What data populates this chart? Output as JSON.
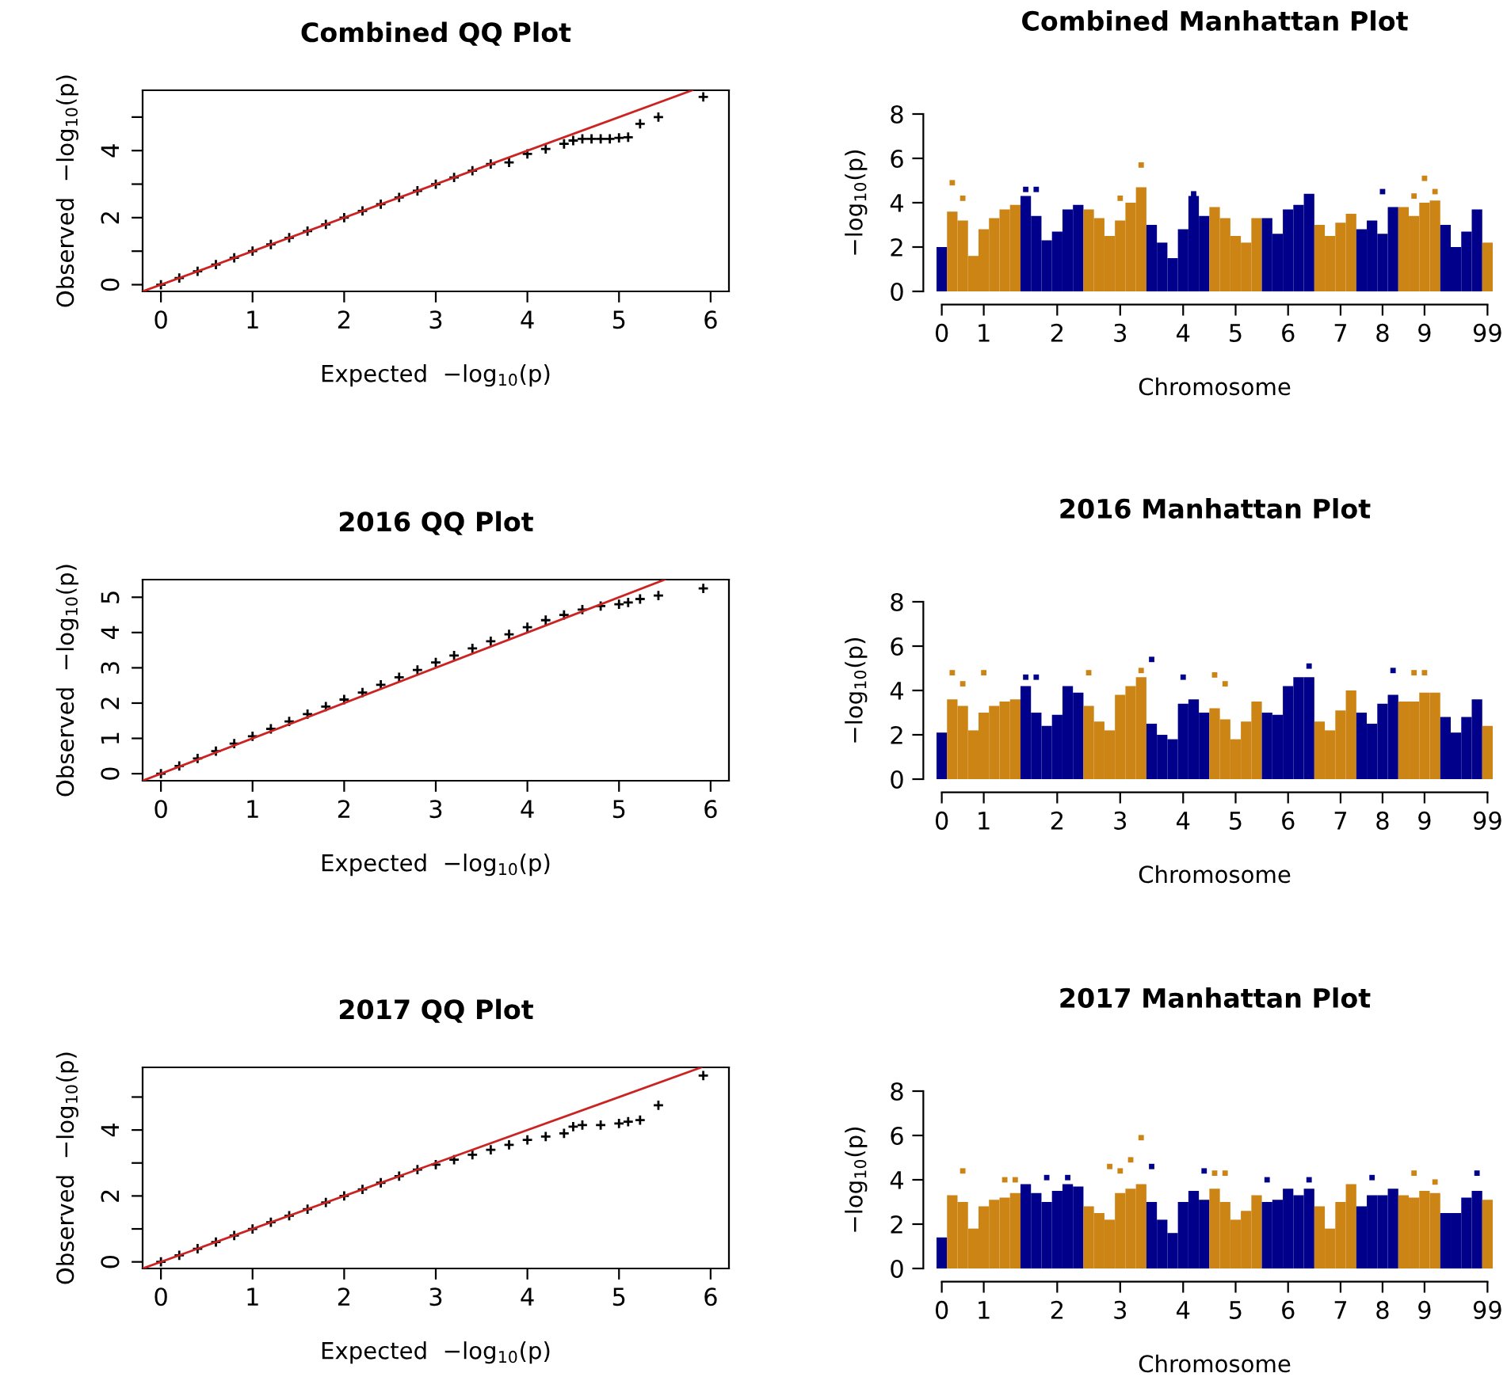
{
  "chart_data": [
    {
      "type": "scatter",
      "title": "Combined QQ Plot",
      "xlabel": "Expected  −log$_{10}$(p)",
      "ylabel": "Observed  −log$_{10}$(p)",
      "xlim": [
        -0.2,
        6.2
      ],
      "ylim": [
        -0.2,
        5.8
      ],
      "xticks": [
        0,
        1,
        2,
        3,
        4,
        5,
        6
      ],
      "yticks": [
        0,
        {
          "value": 1,
          "label": null
        },
        2,
        {
          "value": 3,
          "label": null
        },
        4,
        {
          "value": 5,
          "label": null
        }
      ],
      "series": [
        {
          "marker": "cross",
          "color": "#000000",
          "x": [
            0,
            0.2,
            0.4,
            0.6,
            0.8,
            1,
            1.2,
            1.4,
            1.6,
            1.8,
            2,
            2.2,
            2.4,
            2.6,
            2.8,
            3,
            3.2,
            3.4,
            3.6,
            3.8,
            4,
            4.2,
            4.4,
            4.5,
            4.6,
            4.7,
            4.8,
            4.9,
            5,
            5.1,
            5.23,
            5.43,
            5.92
          ],
          "values": [
            0,
            0.2,
            0.4,
            0.6,
            0.8,
            1,
            1.2,
            1.4,
            1.6,
            1.8,
            2,
            2.2,
            2.4,
            2.6,
            2.8,
            3,
            3.2,
            3.4,
            3.6,
            3.65,
            3.9,
            4.05,
            4.2,
            4.3,
            4.35,
            4.35,
            4.35,
            4.35,
            4.38,
            4.4,
            4.8,
            5,
            5.6
          ]
        },
        {
          "type": "line",
          "line_style": "solid",
          "color": "#cc2222",
          "x": [
            -0.2,
            5.8
          ],
          "values": [
            -0.2,
            5.8
          ]
        }
      ]
    },
    {
      "type": "bar",
      "title": "Combined Manhattan Plot",
      "xlabel": "Chromosome",
      "ylabel": "−log$_{10}$(p)",
      "ylim": [
        0,
        8
      ],
      "yticks": [
        0,
        2,
        4,
        6,
        8
      ],
      "categories": [
        "0",
        null,
        null,
        null,
        "1",
        null,
        null,
        null,
        null,
        null,
        null,
        "2",
        null,
        null,
        null,
        null,
        null,
        "3",
        null,
        null,
        null,
        null,
        null,
        "4",
        null,
        null,
        null,
        null,
        "5",
        null,
        null,
        null,
        null,
        "6",
        null,
        null,
        null,
        null,
        "7",
        null,
        null,
        null,
        "8",
        null,
        null,
        null,
        "9",
        null,
        null,
        null,
        null,
        null,
        "99"
      ],
      "series": [
        {
          "colors": [
            "#00008b",
            "#cc8414",
            "#cc8414",
            "#cc8414",
            "#cc8414",
            "#cc8414",
            "#cc8414",
            "#cc8414",
            "#00008b",
            "#00008b",
            "#00008b",
            "#00008b",
            "#00008b",
            "#00008b",
            "#cc8414",
            "#cc8414",
            "#cc8414",
            "#cc8414",
            "#cc8414",
            "#cc8414",
            "#00008b",
            "#00008b",
            "#00008b",
            "#00008b",
            "#00008b",
            "#00008b",
            "#cc8414",
            "#cc8414",
            "#cc8414",
            "#cc8414",
            "#cc8414",
            "#00008b",
            "#00008b",
            "#00008b",
            "#00008b",
            "#00008b",
            "#cc8414",
            "#cc8414",
            "#cc8414",
            "#cc8414",
            "#00008b",
            "#00008b",
            "#00008b",
            "#00008b",
            "#cc8414",
            "#cc8414",
            "#cc8414",
            "#cc8414",
            "#00008b",
            "#00008b",
            "#00008b",
            "#00008b",
            "#cc8414"
          ],
          "values": [
            2.0,
            3.6,
            3.2,
            1.6,
            2.8,
            3.3,
            3.7,
            3.9,
            4.3,
            3.4,
            2.3,
            2.7,
            3.7,
            3.9,
            3.7,
            3.3,
            2.5,
            3.2,
            4.0,
            4.7,
            3.0,
            2.2,
            1.5,
            2.8,
            4.3,
            3.4,
            3.8,
            3.3,
            2.5,
            2.2,
            3.3,
            3.3,
            2.6,
            3.7,
            3.9,
            4.4,
            3.0,
            2.5,
            3.1,
            3.5,
            2.8,
            3.2,
            2.6,
            3.8,
            3.8,
            3.4,
            4.0,
            4.1,
            3.0,
            2.0,
            2.7,
            3.7,
            2.2
          ]
        },
        {
          "type": "scatter",
          "marker": "square",
          "color": "#cc8414",
          "values": [
            null,
            4.9,
            4.2,
            null,
            null,
            null,
            null,
            null,
            null,
            null,
            null,
            null,
            null,
            null,
            null,
            null,
            null,
            4.2,
            null,
            5.7,
            null,
            null,
            null,
            null,
            null,
            null,
            null,
            null,
            null,
            null,
            null,
            null,
            null,
            null,
            null,
            null,
            null,
            null,
            null,
            null,
            null,
            null,
            null,
            null,
            null,
            4.3,
            5.1,
            4.5,
            null,
            null,
            null,
            null,
            null
          ]
        },
        {
          "type": "scatter",
          "marker": "square",
          "color": "#00008b",
          "values": [
            null,
            null,
            null,
            null,
            null,
            null,
            null,
            null,
            4.6,
            4.6,
            null,
            null,
            null,
            null,
            null,
            null,
            null,
            null,
            null,
            null,
            null,
            null,
            null,
            null,
            4.4,
            null,
            null,
            null,
            null,
            null,
            null,
            null,
            null,
            null,
            null,
            null,
            null,
            null,
            null,
            null,
            null,
            null,
            4.5,
            null,
            null,
            null,
            null,
            null,
            null,
            null,
            null,
            null,
            null
          ]
        }
      ]
    },
    {
      "type": "scatter",
      "title": "2016 QQ Plot",
      "xlabel": "Expected  −log$_{10}$(p)",
      "ylabel": "Observed  −log$_{10}$(p)",
      "xlim": [
        -0.2,
        6.2
      ],
      "ylim": [
        -0.2,
        5.5
      ],
      "xticks": [
        0,
        1,
        2,
        3,
        4,
        5,
        6
      ],
      "yticks": [
        0,
        1,
        2,
        3,
        4,
        5
      ],
      "series": [
        {
          "marker": "cross",
          "color": "#000000",
          "x": [
            0,
            0.2,
            0.4,
            0.6,
            0.8,
            1,
            1.2,
            1.4,
            1.6,
            1.8,
            2,
            2.2,
            2.4,
            2.6,
            2.8,
            3,
            3.2,
            3.4,
            3.6,
            3.8,
            4,
            4.2,
            4.4,
            4.6,
            4.8,
            5,
            5.1,
            5.23,
            5.43,
            5.92
          ],
          "values": [
            0,
            0.22,
            0.43,
            0.64,
            0.85,
            1.06,
            1.27,
            1.48,
            1.69,
            1.9,
            2.1,
            2.3,
            2.52,
            2.73,
            2.94,
            3.15,
            3.35,
            3.55,
            3.75,
            3.95,
            4.15,
            4.35,
            4.5,
            4.65,
            4.75,
            4.8,
            4.85,
            4.95,
            5.05,
            5.25
          ]
        },
        {
          "type": "line",
          "line_style": "solid",
          "color": "#cc2222",
          "x": [
            -0.2,
            5.5
          ],
          "values": [
            -0.2,
            5.5
          ]
        }
      ]
    },
    {
      "type": "bar",
      "title": "2016 Manhattan Plot",
      "xlabel": "Chromosome",
      "ylabel": "−log$_{10}$(p)",
      "ylim": [
        0,
        8
      ],
      "yticks": [
        0,
        2,
        4,
        6,
        8
      ],
      "categories": [
        "0",
        null,
        null,
        null,
        "1",
        null,
        null,
        null,
        null,
        null,
        null,
        "2",
        null,
        null,
        null,
        null,
        null,
        "3",
        null,
        null,
        null,
        null,
        null,
        "4",
        null,
        null,
        null,
        null,
        "5",
        null,
        null,
        null,
        null,
        "6",
        null,
        null,
        null,
        null,
        "7",
        null,
        null,
        null,
        "8",
        null,
        null,
        null,
        "9",
        null,
        null,
        null,
        null,
        null,
        "99"
      ],
      "series": [
        {
          "colors": [
            "#00008b",
            "#cc8414",
            "#cc8414",
            "#cc8414",
            "#cc8414",
            "#cc8414",
            "#cc8414",
            "#cc8414",
            "#00008b",
            "#00008b",
            "#00008b",
            "#00008b",
            "#00008b",
            "#00008b",
            "#cc8414",
            "#cc8414",
            "#cc8414",
            "#cc8414",
            "#cc8414",
            "#cc8414",
            "#00008b",
            "#00008b",
            "#00008b",
            "#00008b",
            "#00008b",
            "#00008b",
            "#cc8414",
            "#cc8414",
            "#cc8414",
            "#cc8414",
            "#cc8414",
            "#00008b",
            "#00008b",
            "#00008b",
            "#00008b",
            "#00008b",
            "#cc8414",
            "#cc8414",
            "#cc8414",
            "#cc8414",
            "#00008b",
            "#00008b",
            "#00008b",
            "#00008b",
            "#cc8414",
            "#cc8414",
            "#cc8414",
            "#cc8414",
            "#00008b",
            "#00008b",
            "#00008b",
            "#00008b",
            "#cc8414"
          ],
          "values": [
            2.1,
            3.6,
            3.3,
            2.2,
            3.0,
            3.3,
            3.5,
            3.6,
            4.2,
            3.0,
            2.4,
            2.9,
            4.2,
            3.9,
            3.3,
            2.6,
            2.2,
            3.8,
            4.2,
            4.6,
            2.5,
            2.0,
            1.8,
            3.4,
            3.6,
            3.0,
            3.2,
            2.7,
            1.8,
            2.6,
            3.5,
            3.0,
            2.9,
            4.2,
            4.6,
            4.6,
            2.6,
            2.2,
            3.1,
            4.0,
            3.0,
            2.5,
            3.4,
            3.8,
            3.5,
            3.5,
            3.9,
            3.9,
            2.8,
            2.1,
            2.8,
            3.6,
            2.4
          ]
        },
        {
          "type": "scatter",
          "marker": "square",
          "color": "#cc8414",
          "values": [
            null,
            4.8,
            4.3,
            null,
            4.8,
            null,
            null,
            null,
            null,
            null,
            null,
            null,
            null,
            null,
            4.8,
            null,
            null,
            null,
            null,
            4.9,
            null,
            null,
            null,
            null,
            null,
            null,
            4.7,
            4.3,
            null,
            null,
            null,
            null,
            null,
            null,
            null,
            null,
            null,
            null,
            null,
            null,
            null,
            null,
            null,
            null,
            null,
            4.8,
            4.8,
            null,
            null,
            null,
            null,
            null,
            null
          ]
        },
        {
          "type": "scatter",
          "marker": "square",
          "color": "#00008b",
          "values": [
            null,
            null,
            null,
            null,
            null,
            null,
            null,
            null,
            4.6,
            4.6,
            null,
            null,
            null,
            null,
            null,
            null,
            null,
            null,
            null,
            null,
            5.4,
            null,
            null,
            4.6,
            null,
            null,
            null,
            null,
            null,
            null,
            null,
            null,
            null,
            null,
            null,
            5.1,
            null,
            null,
            null,
            null,
            null,
            null,
            null,
            4.9,
            null,
            null,
            null,
            null,
            null,
            null,
            null,
            null,
            null
          ]
        }
      ]
    },
    {
      "type": "scatter",
      "title": "2017 QQ Plot",
      "xlabel": "Expected  −log$_{10}$(p)",
      "ylabel": "Observed  −log$_{10}$(p)",
      "xlim": [
        -0.2,
        6.2
      ],
      "ylim": [
        -0.2,
        5.9
      ],
      "xticks": [
        0,
        1,
        2,
        3,
        4,
        5,
        6
      ],
      "yticks": [
        0,
        {
          "value": 1,
          "label": null
        },
        2,
        {
          "value": 3,
          "label": null
        },
        4,
        {
          "value": 5,
          "label": null
        }
      ],
      "series": [
        {
          "marker": "cross",
          "color": "#000000",
          "x": [
            0,
            0.2,
            0.4,
            0.6,
            0.8,
            1,
            1.2,
            1.4,
            1.6,
            1.8,
            2,
            2.2,
            2.4,
            2.6,
            2.8,
            3,
            3.2,
            3.4,
            3.6,
            3.8,
            4,
            4.2,
            4.4,
            4.5,
            4.6,
            4.8,
            5,
            5.1,
            5.23,
            5.43,
            5.92
          ],
          "values": [
            0,
            0.2,
            0.4,
            0.6,
            0.8,
            1,
            1.2,
            1.4,
            1.6,
            1.8,
            2,
            2.2,
            2.4,
            2.6,
            2.8,
            2.95,
            3.1,
            3.25,
            3.4,
            3.55,
            3.7,
            3.8,
            3.9,
            4.1,
            4.15,
            4.15,
            4.2,
            4.25,
            4.3,
            4.75,
            5.65
          ]
        },
        {
          "type": "line",
          "line_style": "solid",
          "color": "#cc2222",
          "x": [
            -0.2,
            5.9
          ],
          "values": [
            -0.2,
            5.9
          ]
        }
      ]
    },
    {
      "type": "bar",
      "title": "2017 Manhattan Plot",
      "xlabel": "Chromosome",
      "ylabel": "−log$_{10}$(p)",
      "ylim": [
        0,
        8
      ],
      "yticks": [
        0,
        2,
        4,
        6,
        8
      ],
      "categories": [
        "0",
        null,
        null,
        null,
        "1",
        null,
        null,
        null,
        null,
        null,
        null,
        "2",
        null,
        null,
        null,
        null,
        null,
        "3",
        null,
        null,
        null,
        null,
        null,
        "4",
        null,
        null,
        null,
        null,
        "5",
        null,
        null,
        null,
        null,
        "6",
        null,
        null,
        null,
        null,
        "7",
        null,
        null,
        null,
        "8",
        null,
        null,
        null,
        "9",
        null,
        null,
        null,
        null,
        null,
        "99"
      ],
      "series": [
        {
          "colors": [
            "#00008b",
            "#cc8414",
            "#cc8414",
            "#cc8414",
            "#cc8414",
            "#cc8414",
            "#cc8414",
            "#cc8414",
            "#00008b",
            "#00008b",
            "#00008b",
            "#00008b",
            "#00008b",
            "#00008b",
            "#cc8414",
            "#cc8414",
            "#cc8414",
            "#cc8414",
            "#cc8414",
            "#cc8414",
            "#00008b",
            "#00008b",
            "#00008b",
            "#00008b",
            "#00008b",
            "#00008b",
            "#cc8414",
            "#cc8414",
            "#cc8414",
            "#cc8414",
            "#cc8414",
            "#00008b",
            "#00008b",
            "#00008b",
            "#00008b",
            "#00008b",
            "#cc8414",
            "#cc8414",
            "#cc8414",
            "#cc8414",
            "#00008b",
            "#00008b",
            "#00008b",
            "#00008b",
            "#cc8414",
            "#cc8414",
            "#cc8414",
            "#cc8414",
            "#00008b",
            "#00008b",
            "#00008b",
            "#00008b",
            "#cc8414"
          ],
          "values": [
            1.4,
            3.3,
            3.0,
            1.8,
            2.8,
            3.1,
            3.2,
            3.4,
            3.8,
            3.4,
            3.0,
            3.5,
            3.8,
            3.7,
            2.8,
            2.5,
            2.2,
            3.4,
            3.6,
            3.8,
            3.0,
            2.2,
            1.6,
            3.0,
            3.5,
            3.1,
            3.6,
            3.0,
            2.2,
            2.6,
            3.3,
            3.0,
            3.1,
            3.6,
            3.3,
            3.6,
            2.8,
            1.8,
            3.0,
            3.8,
            2.8,
            3.3,
            3.3,
            3.6,
            3.3,
            3.2,
            3.5,
            3.4,
            2.5,
            2.5,
            3.2,
            3.5,
            3.1
          ]
        },
        {
          "type": "scatter",
          "marker": "square",
          "color": "#cc8414",
          "values": [
            null,
            null,
            4.4,
            null,
            null,
            null,
            4.0,
            4.0,
            null,
            null,
            null,
            null,
            null,
            null,
            null,
            null,
            4.6,
            4.4,
            4.9,
            5.9,
            null,
            null,
            null,
            null,
            null,
            null,
            4.3,
            4.3,
            null,
            null,
            null,
            null,
            null,
            null,
            null,
            null,
            null,
            null,
            null,
            null,
            null,
            null,
            null,
            null,
            null,
            4.3,
            null,
            3.9,
            null,
            null,
            null,
            null,
            null
          ]
        },
        {
          "type": "scatter",
          "marker": "square",
          "color": "#00008b",
          "values": [
            null,
            null,
            null,
            null,
            null,
            null,
            null,
            null,
            null,
            null,
            4.1,
            null,
            4.1,
            null,
            null,
            null,
            null,
            null,
            null,
            null,
            4.6,
            null,
            null,
            null,
            null,
            4.4,
            null,
            null,
            null,
            null,
            null,
            4.0,
            null,
            null,
            null,
            4.0,
            null,
            null,
            null,
            null,
            null,
            4.1,
            null,
            null,
            null,
            null,
            null,
            null,
            null,
            null,
            null,
            4.3,
            null
          ]
        }
      ]
    }
  ]
}
